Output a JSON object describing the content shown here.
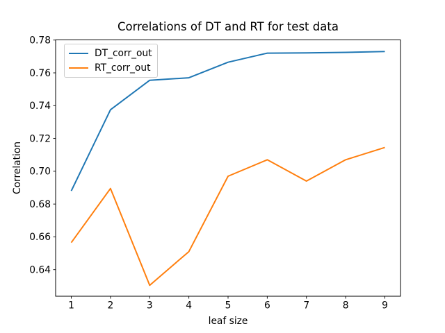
{
  "figure": {
    "title": "Correlations of DT and RT for test data",
    "xlabel": "leaf size",
    "ylabel": "Correlation"
  },
  "legend": {
    "position": "upper left",
    "entries": [
      {
        "label": "DT_corr_out",
        "color": "#1f77b4"
      },
      {
        "label": "RT_corr_out",
        "color": "#ff7f0e"
      }
    ]
  },
  "chart_data": {
    "type": "line",
    "title": "Correlations of DT and RT for test data",
    "xlabel": "leaf size",
    "ylabel": "Correlation",
    "x": [
      1,
      2,
      3,
      4,
      5,
      6,
      7,
      8,
      9
    ],
    "series": [
      {
        "name": "DT_corr_out",
        "color": "#1f77b4",
        "values": [
          0.688,
          0.7375,
          0.7555,
          0.757,
          0.7665,
          0.772,
          0.7722,
          0.7725,
          0.773
        ]
      },
      {
        "name": "RT_corr_out",
        "color": "#ff7f0e",
        "values": [
          0.6565,
          0.6895,
          0.6305,
          0.651,
          0.697,
          0.707,
          0.694,
          0.707,
          0.7145
        ]
      }
    ],
    "xlim": [
      0.6,
      9.4
    ],
    "ylim": [
      0.6238,
      0.7801
    ],
    "x_ticks": [
      1,
      2,
      3,
      4,
      5,
      6,
      7,
      8,
      9
    ],
    "x_tick_labels": [
      "1",
      "2",
      "3",
      "4",
      "5",
      "6",
      "7",
      "8",
      "9"
    ],
    "y_ticks": [
      0.64,
      0.66,
      0.68,
      0.7,
      0.72,
      0.74,
      0.76,
      0.78
    ],
    "y_tick_labels": [
      "0.64",
      "0.66",
      "0.68",
      "0.70",
      "0.72",
      "0.74",
      "0.76",
      "0.78"
    ],
    "grid": false,
    "legend_position": "upper left",
    "line_width": 2,
    "spine_color": "#000000"
  }
}
